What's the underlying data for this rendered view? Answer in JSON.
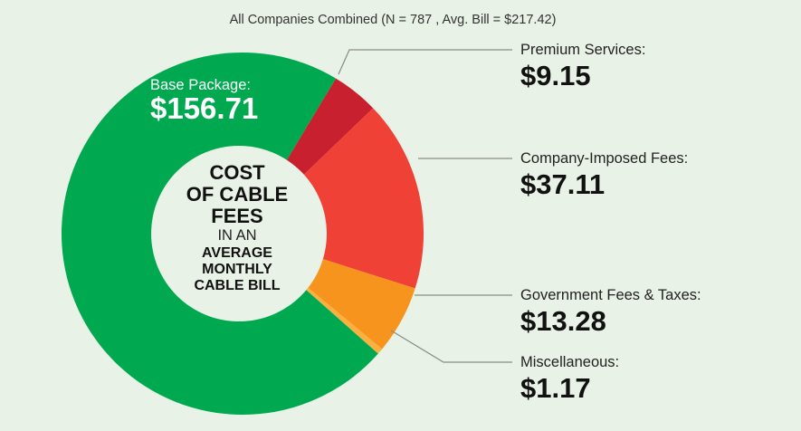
{
  "chart_data": {
    "type": "pie",
    "subtitle": "All Companies Combined (N = 787 , Avg. Bill = $217.42)",
    "center_text": [
      "COST",
      "OF CABLE",
      "FEES",
      "IN AN",
      "AVERAGE",
      "MONTHLY",
      "CABLE BILL"
    ],
    "slices": [
      {
        "label": "Premium Services:",
        "value": 9.15,
        "value_text": "$9.15",
        "color": "#c8202f"
      },
      {
        "label": "Company-Imposed Fees:",
        "value": 37.11,
        "value_text": "$37.11",
        "color": "#ef4136"
      },
      {
        "label": "Government Fees & Taxes:",
        "value": 13.28,
        "value_text": "$13.28",
        "color": "#f7941d"
      },
      {
        "label": "Miscellaneous:",
        "value": 1.17,
        "value_text": "$1.17",
        "color": "#fbb040"
      },
      {
        "label": "Base Package:",
        "value": 156.71,
        "value_text": "$156.71",
        "color": "#00a94f"
      }
    ],
    "center_color": "#e9f2e6"
  }
}
